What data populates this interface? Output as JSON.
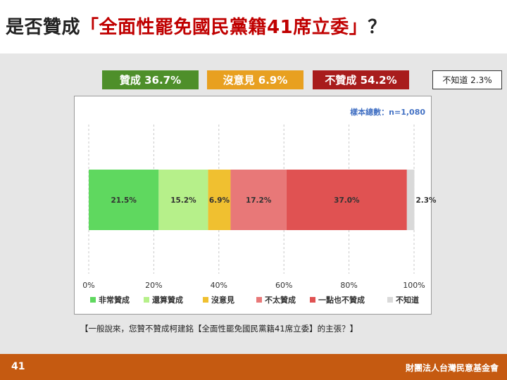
{
  "title": {
    "prefix": "是否贊成",
    "highlight": "「全面性罷免國民黨籍41席立委」",
    "suffix": "？"
  },
  "summary": [
    {
      "label": "贊成 36.7%",
      "color": "#4e8f2a"
    },
    {
      "label": "沒意見 6.9%",
      "color": "#e8a020"
    },
    {
      "label": "不贊成 54.2%",
      "color": "#a81c1c"
    },
    {
      "label": "不知道 2.3%",
      "color": "#ffffff"
    }
  ],
  "sample_note": "樣本總數：n=1,080",
  "question": "【一般說來，您贊不贊成柯建銘【全面性罷免國民黨籍41席立委】的主張？】",
  "page_number": "41",
  "organization": "財團法人台灣民意基金會",
  "chart_data": {
    "type": "bar",
    "orientation": "horizontal",
    "stacked": true,
    "categories": [
      ""
    ],
    "series": [
      {
        "name": "非常贊成",
        "values": [
          21.5
        ],
        "label": "21.5%",
        "color": "#5fd85f"
      },
      {
        "name": "還算贊成",
        "values": [
          15.2
        ],
        "label": "15.2%",
        "color": "#b6f08a"
      },
      {
        "name": "沒意見",
        "values": [
          6.9
        ],
        "label": "6.9%",
        "color": "#f0c030"
      },
      {
        "name": "不太贊成",
        "values": [
          17.2
        ],
        "label": "17.2%",
        "color": "#e87878"
      },
      {
        "name": "一點也不贊成",
        "values": [
          37.0
        ],
        "label": "37.0%",
        "color": "#e05252"
      },
      {
        "name": "不知道",
        "values": [
          2.3
        ],
        "label": "2.3%",
        "color": "#d9d9d9"
      }
    ],
    "xlim": [
      0,
      100
    ],
    "x_ticks": [
      "0%",
      "20%",
      "40%",
      "60%",
      "80%",
      "100%"
    ],
    "grid": "vertical dashed",
    "legend_position": "bottom"
  }
}
